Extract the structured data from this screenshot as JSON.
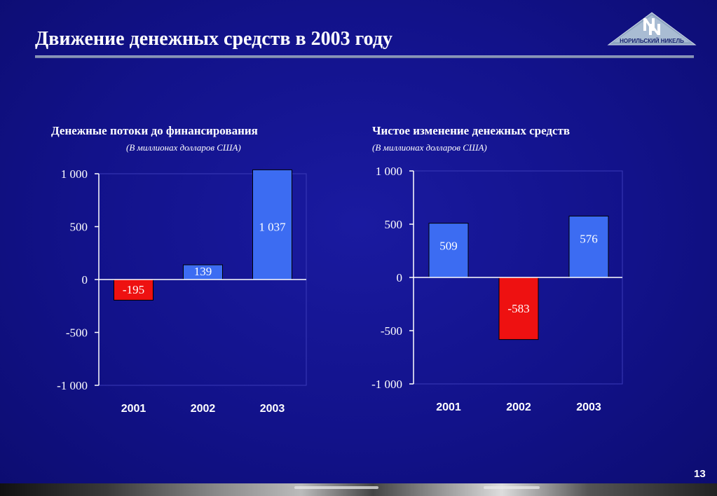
{
  "slide": {
    "title": "Движение денежных средств в 2003 году",
    "page_number": "13",
    "logo_text": "НОРИЛЬСКИЙ НИКЕЛЬ"
  },
  "colors": {
    "positive_bar": "#3c6cf2",
    "negative_bar": "#ee1111",
    "axis": "#ffffff"
  },
  "chart_data": [
    {
      "type": "bar",
      "title": "Денежные потоки до финансирования",
      "subtitle": "(В миллионах долларов США)",
      "categories": [
        "2001",
        "2002",
        "2003"
      ],
      "values": [
        -195,
        139,
        1037
      ],
      "value_labels": [
        "-195",
        "139",
        "1 037"
      ],
      "ylim": [
        -1000,
        1000
      ],
      "yticks": [
        1000,
        500,
        0,
        -500,
        -1000
      ],
      "ytick_labels": [
        "1 000",
        "500",
        "0",
        "-500",
        "-1 000"
      ],
      "grid": false,
      "legend": "none"
    },
    {
      "type": "bar",
      "title": "Чистое изменение денежных средств",
      "subtitle": "(В миллионах долларов США)",
      "categories": [
        "2001",
        "2002",
        "2003"
      ],
      "values": [
        509,
        -583,
        576
      ],
      "value_labels": [
        "509",
        "-583",
        "576"
      ],
      "ylim": [
        -1000,
        1000
      ],
      "yticks": [
        1000,
        500,
        0,
        -500,
        -1000
      ],
      "ytick_labels": [
        "1 000",
        "500",
        "0",
        "-500",
        "-1 000"
      ],
      "grid": false,
      "legend": "none"
    }
  ]
}
